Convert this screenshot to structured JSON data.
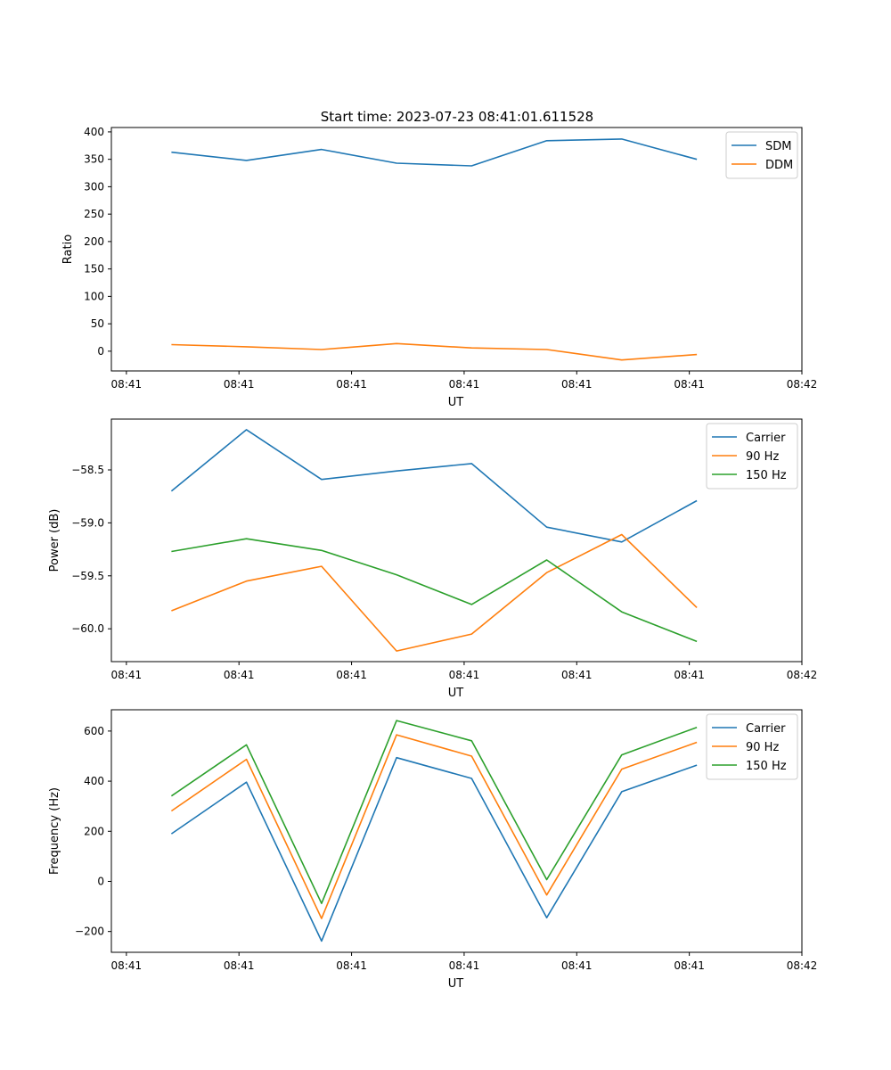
{
  "figure_title": "Start time: 2023-07-23 08:41:01.611528",
  "colors": {
    "c0": "#1f77b4",
    "c1": "#ff7f0e",
    "c2": "#2ca02c"
  },
  "chart_data": [
    {
      "type": "line",
      "title": "Start time: 2023-07-23 08:41:01.611528",
      "xlabel": "UT",
      "ylabel": "Ratio",
      "x": [
        1,
        2,
        3,
        4,
        5,
        6,
        7,
        8
      ],
      "xlim": [
        0.2,
        9.4
      ],
      "ylim": [
        -36,
        408
      ],
      "xticks": [
        0.4,
        1.9,
        3.4,
        4.9,
        6.4,
        7.9,
        9.4
      ],
      "xtick_labels": [
        "08:41",
        "08:41",
        "08:41",
        "08:41",
        "08:41",
        "08:41",
        "08:42"
      ],
      "yticks": [
        0,
        50,
        100,
        150,
        200,
        250,
        300,
        350,
        400
      ],
      "ytick_labels": [
        "0",
        "50",
        "100",
        "150",
        "200",
        "250",
        "300",
        "350",
        "400"
      ],
      "legend_position": "top-right",
      "series": [
        {
          "name": "SDM",
          "color": "#1f77b4",
          "values": [
            363,
            348,
            368,
            343,
            338,
            384,
            387,
            350
          ]
        },
        {
          "name": "DDM",
          "color": "#ff7f0e",
          "values": [
            12,
            8,
            3,
            14,
            6,
            3,
            -16,
            -6
          ]
        }
      ]
    },
    {
      "type": "line",
      "title": "",
      "xlabel": "UT",
      "ylabel": "Power (dB)",
      "x": [
        1,
        2,
        3,
        4,
        5,
        6,
        7,
        8
      ],
      "xlim": [
        0.2,
        9.4
      ],
      "ylim": [
        -60.31,
        -58.02
      ],
      "xticks": [
        0.4,
        1.9,
        3.4,
        4.9,
        6.4,
        7.9,
        9.4
      ],
      "xtick_labels": [
        "08:41",
        "08:41",
        "08:41",
        "08:41",
        "08:41",
        "08:41",
        "08:42"
      ],
      "yticks": [
        -60.0,
        -59.5,
        -59.0,
        -58.5
      ],
      "ytick_labels": [
        "−60.0",
        "−59.5",
        "−59.0",
        "−58.5"
      ],
      "legend_position": "top-right",
      "series": [
        {
          "name": "Carrier",
          "color": "#1f77b4",
          "values": [
            -58.7,
            -58.12,
            -58.59,
            -58.51,
            -58.44,
            -59.04,
            -59.18,
            -58.79
          ]
        },
        {
          "name": "90 Hz",
          "color": "#ff7f0e",
          "values": [
            -59.83,
            -59.55,
            -59.41,
            -60.21,
            -60.05,
            -59.47,
            -59.11,
            -59.8
          ]
        },
        {
          "name": "150 Hz",
          "color": "#2ca02c",
          "values": [
            -59.27,
            -59.15,
            -59.26,
            -59.49,
            -59.77,
            -59.35,
            -59.84,
            -60.12
          ]
        }
      ]
    },
    {
      "type": "line",
      "title": "",
      "xlabel": "UT",
      "ylabel": "Frequency (Hz)",
      "x": [
        1,
        2,
        3,
        4,
        5,
        6,
        7,
        8
      ],
      "xlim": [
        0.2,
        9.4
      ],
      "ylim": [
        -283,
        685
      ],
      "xticks": [
        0.4,
        1.9,
        3.4,
        4.9,
        6.4,
        7.9,
        9.4
      ],
      "xtick_labels": [
        "08:41",
        "08:41",
        "08:41",
        "08:41",
        "08:41",
        "08:41",
        "08:42"
      ],
      "yticks": [
        -200,
        0,
        200,
        400,
        600
      ],
      "ytick_labels": [
        "−200",
        "0",
        "200",
        "400",
        "600"
      ],
      "legend_position": "top-right",
      "series": [
        {
          "name": "Carrier",
          "color": "#1f77b4",
          "values": [
            190,
            396,
            -238,
            494,
            411,
            -145,
            358,
            464
          ]
        },
        {
          "name": "90 Hz",
          "color": "#ff7f0e",
          "values": [
            281,
            487,
            -148,
            585,
            500,
            -54,
            448,
            555
          ]
        },
        {
          "name": "150 Hz",
          "color": "#2ca02c",
          "values": [
            341,
            545,
            -88,
            642,
            561,
            7,
            505,
            615
          ]
        }
      ]
    }
  ]
}
